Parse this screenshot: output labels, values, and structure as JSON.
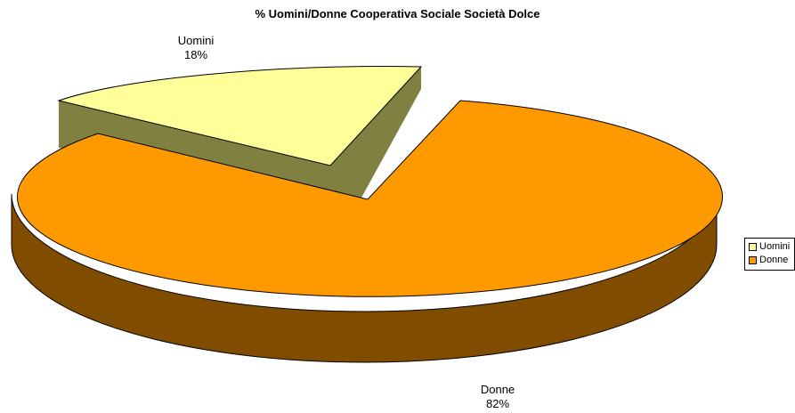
{
  "chart_data": {
    "type": "pie",
    "title": "% Uomini/Donne Cooperativa Sociale Società Dolce",
    "slices": [
      {
        "name": "Uomini",
        "value": 18,
        "label": "18%",
        "color": "#ffff99",
        "side_color": "#808040"
      },
      {
        "name": "Donne",
        "value": 82,
        "label": "82%",
        "color": "#ff9900",
        "side_color": "#804c00"
      }
    ],
    "legend_position": "right",
    "three_d": true
  }
}
